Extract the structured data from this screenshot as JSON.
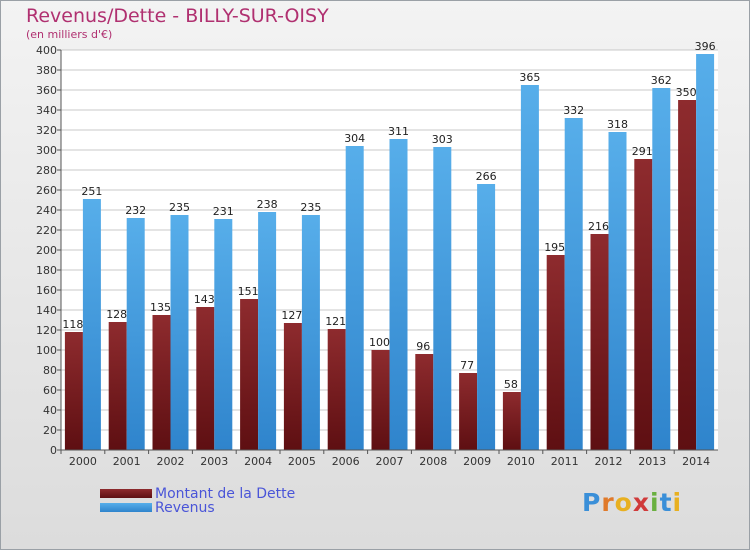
{
  "title": "Revenus/Dette - BILLY-SUR-OISY",
  "subtitle": "(en milliers d'€)",
  "logo": "Proxiti",
  "colors": {
    "dette": "#7a1d20",
    "revenus": "#4aa0e6",
    "title": "#b03070",
    "legend_text": "#4a55d8"
  },
  "chart_data": {
    "type": "bar",
    "title": "Revenus/Dette - BILLY-SUR-OISY",
    "subtitle": "(en milliers d'€)",
    "categories": [
      "2000",
      "2001",
      "2002",
      "2003",
      "2004",
      "2005",
      "2006",
      "2007",
      "2008",
      "2009",
      "2010",
      "2011",
      "2012",
      "2013",
      "2014"
    ],
    "series": [
      {
        "name": "Montant de la Dette",
        "values": [
          118,
          128,
          135,
          143,
          151,
          127,
          121,
          100,
          96,
          77,
          58,
          195,
          216,
          291,
          350
        ]
      },
      {
        "name": "Revenus",
        "values": [
          251,
          232,
          235,
          231,
          238,
          235,
          304,
          311,
          303,
          266,
          365,
          332,
          318,
          362,
          396
        ]
      }
    ],
    "ylim": [
      0,
      400
    ],
    "ytick_step": 20,
    "grid": true,
    "legend": "bottom-left"
  }
}
